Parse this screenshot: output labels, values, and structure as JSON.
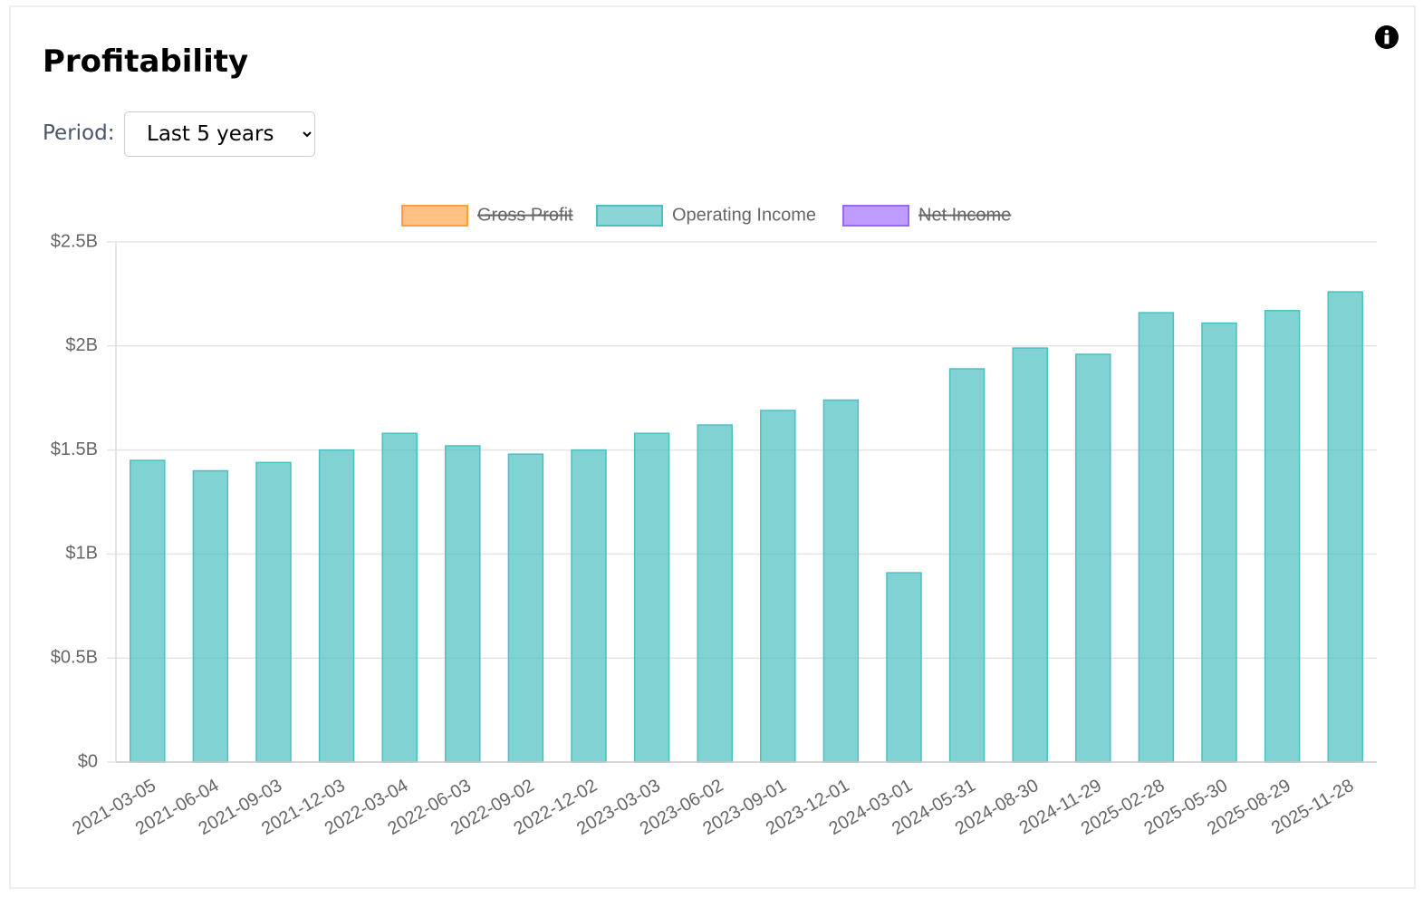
{
  "header": {
    "title": "Profitability"
  },
  "controls": {
    "period_label": "Period:",
    "period": "Last 5 years"
  },
  "chart_data": {
    "type": "bar",
    "categories": [
      "2021-03-05",
      "2021-06-04",
      "2021-09-03",
      "2021-12-03",
      "2022-03-04",
      "2022-06-03",
      "2022-09-02",
      "2022-12-02",
      "2023-03-03",
      "2023-06-02",
      "2023-09-01",
      "2023-12-01",
      "2024-03-01",
      "2024-05-31",
      "2024-08-30",
      "2024-11-29",
      "2025-02-28",
      "2025-05-30",
      "2025-08-29",
      "2025-11-28"
    ],
    "series": [
      {
        "name": "Gross Profit",
        "color": "#ff9f40",
        "hidden": true
      },
      {
        "name": "Operating Income",
        "color": "#4bc0c0",
        "values": [
          1450000000,
          1400000000,
          1440000000,
          1500000000,
          1580000000,
          1520000000,
          1480000000,
          1500000000,
          1580000000,
          1620000000,
          1690000000,
          1740000000,
          910000000,
          1890000000,
          1990000000,
          1960000000,
          2160000000,
          2110000000,
          2170000000,
          2260000000
        ]
      },
      {
        "name": "Net Income",
        "color": "#9966ff",
        "hidden": true
      }
    ],
    "ylim": [
      0,
      2500000000
    ],
    "yticks": [
      {
        "value": 0,
        "label": "$0"
      },
      {
        "value": 500000000,
        "label": "$0.5B"
      },
      {
        "value": 1000000000,
        "label": "$1B"
      },
      {
        "value": 1500000000,
        "label": "$1.5B"
      },
      {
        "value": 2000000000,
        "label": "$2B"
      },
      {
        "value": 2500000000,
        "label": "$2.5B"
      }
    ],
    "grid": true
  }
}
